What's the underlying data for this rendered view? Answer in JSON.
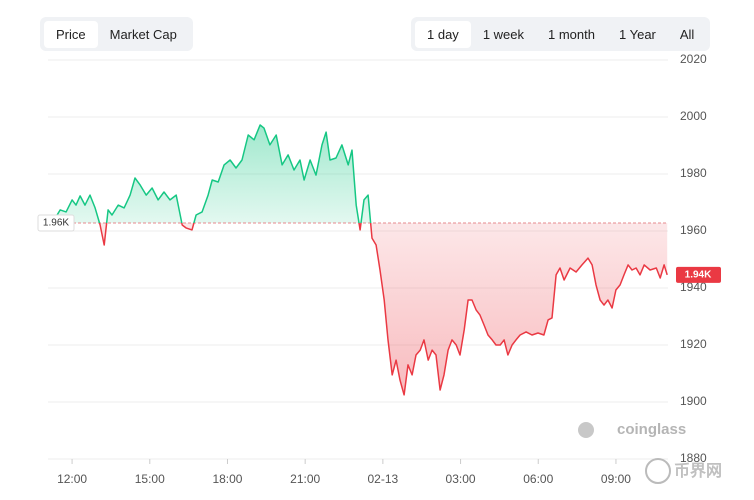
{
  "ui": {
    "metric_tabs": [
      "Price",
      "Market Cap"
    ],
    "selected_metric": 0,
    "range_tabs": [
      "1 day",
      "1 week",
      "1 month",
      "1 Year",
      "All"
    ],
    "selected_range": 0,
    "watermark": "coinglass",
    "corner_logo": "币界网"
  },
  "chart_data": {
    "type": "baseline_area",
    "x": [
      11.42,
      11.54,
      11.77,
      12.0,
      12.15,
      12.31,
      12.5,
      12.69,
      12.89,
      13.08,
      13.24,
      13.39,
      13.54,
      13.78,
      14.01,
      14.24,
      14.43,
      14.63,
      14.86,
      15.09,
      15.32,
      15.55,
      15.78,
      16.02,
      16.25,
      16.4,
      16.63,
      16.79,
      17.02,
      17.25,
      17.41,
      17.64,
      17.87,
      18.1,
      18.33,
      18.56,
      18.8,
      19.03,
      19.26,
      19.41,
      19.64,
      19.88,
      20.11,
      20.34,
      20.57,
      20.8,
      20.96,
      21.19,
      21.42,
      21.65,
      21.81,
      21.96,
      22.19,
      22.42,
      22.66,
      22.81,
      22.97,
      23.12,
      23.27,
      23.43,
      23.58,
      23.74,
      23.89,
      24.05,
      24.2,
      24.36,
      24.51,
      24.66,
      24.82,
      24.97,
      25.13,
      25.28,
      25.44,
      25.59,
      25.75,
      25.9,
      26.05,
      26.21,
      26.36,
      26.52,
      26.67,
      26.83,
      26.98,
      27.14,
      27.29,
      27.44,
      27.6,
      27.75,
      27.91,
      28.06,
      28.22,
      28.37,
      28.53,
      28.68,
      28.83,
      28.99,
      29.14,
      29.3,
      29.53,
      29.76,
      29.99,
      30.22,
      30.38,
      30.53,
      30.69,
      30.84,
      31.0,
      31.23,
      31.46,
      31.69,
      31.92,
      32.08,
      32.23,
      32.39,
      32.54,
      32.69,
      32.85,
      33.0,
      33.16,
      33.31,
      33.47,
      33.62,
      33.78,
      33.93,
      34.09,
      34.32,
      34.56,
      34.71,
      34.86,
      34.98
    ],
    "series": [
      {
        "name": "Price",
        "up_color": "#16c784",
        "down_color": "#ea3943",
        "values": [
          1965.6,
          1967.4,
          1966.7,
          1970.9,
          1969.1,
          1972.3,
          1969.1,
          1972.6,
          1968.1,
          1962.1,
          1955.1,
          1967.4,
          1965.6,
          1969.1,
          1968.1,
          1972.6,
          1978.6,
          1976.1,
          1972.6,
          1975.1,
          1970.9,
          1973.7,
          1970.9,
          1972.6,
          1962.1,
          1961.1,
          1960.4,
          1965.6,
          1966.7,
          1972.6,
          1977.9,
          1977.2,
          1983.2,
          1984.9,
          1982.1,
          1984.9,
          1993.7,
          1992.0,
          1997.2,
          1996.1,
          1990.2,
          1993.7,
          1983.2,
          1986.7,
          1981.4,
          1984.9,
          1977.9,
          1984.9,
          1979.6,
          1990.2,
          1994.7,
          1984.9,
          1985.6,
          1990.2,
          1983.2,
          1988.4,
          1969.1,
          1960.4,
          1970.9,
          1972.6,
          1957.5,
          1955.1,
          1946.3,
          1935.8,
          1921.8,
          1909.5,
          1914.7,
          1907.7,
          1902.5,
          1913.0,
          1909.5,
          1916.5,
          1918.2,
          1921.8,
          1914.7,
          1918.2,
          1916.5,
          1904.2,
          1909.5,
          1918.2,
          1921.8,
          1920.0,
          1916.5,
          1925.3,
          1935.8,
          1935.8,
          1932.3,
          1930.5,
          1927.0,
          1923.5,
          1921.8,
          1920.0,
          1920.0,
          1921.8,
          1916.5,
          1920.0,
          1921.8,
          1923.5,
          1924.6,
          1923.5,
          1924.2,
          1923.5,
          1928.8,
          1929.5,
          1944.6,
          1947.0,
          1942.8,
          1947.0,
          1945.6,
          1948.1,
          1950.5,
          1948.1,
          1941.1,
          1935.8,
          1934.0,
          1935.8,
          1933.0,
          1939.3,
          1941.1,
          1944.6,
          1948.1,
          1946.3,
          1947.0,
          1944.6,
          1948.1,
          1946.3,
          1947.0,
          1943.5,
          1948.1,
          1944.6
        ]
      }
    ],
    "baseline": {
      "value": 1962.8,
      "label": "1.96K"
    },
    "current_price": {
      "value": 1944.6,
      "label": "1.94K"
    },
    "xlim": [
      11.07,
      35.01
    ],
    "xticks": [
      {
        "value": 12,
        "label": "12:00"
      },
      {
        "value": 15,
        "label": "15:00"
      },
      {
        "value": 18,
        "label": "18:00"
      },
      {
        "value": 21,
        "label": "21:00"
      },
      {
        "value": 24,
        "label": "02-13"
      },
      {
        "value": 27,
        "label": "03:00"
      },
      {
        "value": 30,
        "label": "06:00"
      },
      {
        "value": 33,
        "label": "09:00"
      }
    ],
    "ylim": [
      1880,
      2020
    ],
    "yticks": [
      1880,
      1900,
      1920,
      1940,
      1960,
      1980,
      2000,
      2020
    ],
    "grid": true
  }
}
